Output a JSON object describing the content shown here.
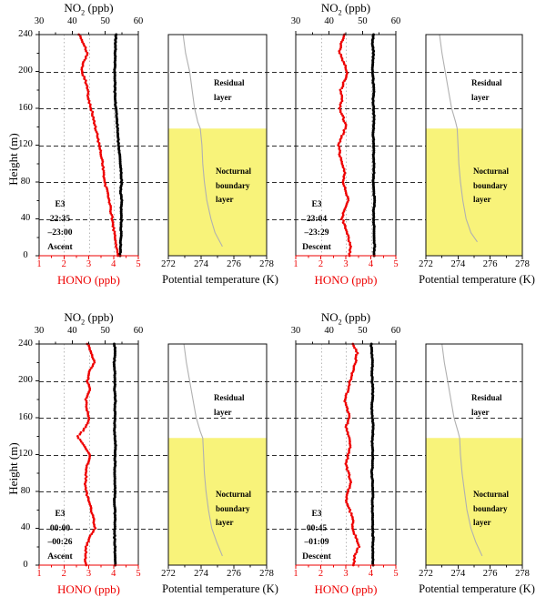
{
  "chart_data": {
    "type": "scatter",
    "description": "Four vertical-profile panels (2x2). Each panel: HONO (red) and NO2 (black) mixing-ratio profiles vs height, plus potential-temperature profile with residual layer and yellow nocturnal boundary layer.",
    "axes": {
      "no2_label_parts": {
        "base": "NO",
        "sub": "2",
        "rest": " (ppb)"
      },
      "hono_label": "HONO (ppb)",
      "theta_label": "Potential temperature (K)",
      "height_label": "Height (m)",
      "no2_ticks": [
        30,
        40,
        50,
        60
      ],
      "no2_minor_ticks": [
        35,
        45,
        55
      ],
      "hono_ticks": [
        1,
        2,
        3,
        4,
        5
      ],
      "hono_minor_ticks": [
        1.5,
        2.5,
        3.5,
        4.5
      ],
      "theta_ticks": [
        272,
        274,
        276,
        278
      ],
      "theta_minor_ticks": [
        273,
        275,
        277
      ],
      "height_ticks": [
        0,
        40,
        80,
        120,
        160,
        200,
        240
      ],
      "height_minor_ticks": [
        20,
        60,
        100,
        140,
        180,
        220
      ],
      "no2_range": [
        30,
        60
      ],
      "hono_range": [
        1,
        5
      ],
      "theta_range": [
        272,
        278
      ],
      "height_range": [
        0,
        240
      ],
      "gridline_heights": [
        40,
        80,
        120,
        160,
        200
      ],
      "hono_dotted_gridlines": [
        2,
        3,
        4
      ],
      "grid": "dashed horizontal at 40/80/120/160/200 m across full row; light dotted vertical at HONO 2/3/4"
    },
    "layer_labels": {
      "residual": [
        "Residual",
        "layer"
      ],
      "nocturnal": [
        "Nocturnal",
        "boundary",
        "layer"
      ]
    },
    "nbl_top_m": 138,
    "heights_m": [
      240,
      230,
      220,
      210,
      200,
      190,
      180,
      170,
      160,
      150,
      140,
      130,
      120,
      110,
      100,
      90,
      80,
      70,
      60,
      50,
      40,
      30,
      20,
      10,
      0
    ],
    "panels": [
      {
        "id": "top-left",
        "annotation": [
          "E3",
          "22:35",
          "–23:00",
          "Ascent"
        ],
        "hono_ppb": [
          2.62,
          2.78,
          2.95,
          2.8,
          2.72,
          2.88,
          2.95,
          3.0,
          3.1,
          3.18,
          3.26,
          3.35,
          3.42,
          3.5,
          3.57,
          3.6,
          3.63,
          3.75,
          3.83,
          3.88,
          3.95,
          4.0,
          4.06,
          4.12,
          4.18
        ],
        "no2_ppb": [
          53.2,
          53.1,
          53.0,
          52.9,
          52.9,
          53.0,
          52.9,
          53.0,
          53.2,
          53.45,
          53.7,
          53.85,
          54.0,
          54.3,
          54.6,
          54.75,
          54.95,
          54.6,
          55.0,
          54.8,
          54.9,
          54.7,
          54.8,
          54.6,
          54.5
        ],
        "theta_K": [
          [
            240,
            272.9
          ],
          [
            220,
            273.05
          ],
          [
            200,
            273.3
          ],
          [
            180,
            273.45
          ],
          [
            160,
            273.6
          ],
          [
            145,
            273.8
          ],
          [
            138,
            273.95
          ],
          [
            120,
            274.05
          ],
          [
            100,
            274.1
          ],
          [
            80,
            274.2
          ],
          [
            60,
            274.35
          ],
          [
            40,
            274.6
          ],
          [
            25,
            274.85
          ],
          [
            10,
            275.3
          ]
        ]
      },
      {
        "id": "top-right",
        "annotation": [
          "E3",
          "23:04",
          "–23:29",
          "Descent"
        ],
        "hono_ppb": [
          2.95,
          2.8,
          2.75,
          2.92,
          3.05,
          2.95,
          2.8,
          2.86,
          2.76,
          2.9,
          3.0,
          2.86,
          2.72,
          2.76,
          2.86,
          2.96,
          2.9,
          3.0,
          3.1,
          2.95,
          2.86,
          3.0,
          3.1,
          3.2,
          3.15
        ],
        "no2_ppb": [
          53.2,
          53.0,
          53.3,
          53.1,
          53.0,
          53.2,
          53.4,
          53.2,
          53.3,
          53.5,
          53.3,
          53.2,
          53.4,
          53.3,
          53.5,
          53.4,
          53.2,
          53.4,
          53.6,
          53.4,
          53.3,
          53.5,
          53.4,
          53.6,
          53.5
        ],
        "theta_K": [
          [
            240,
            272.85
          ],
          [
            220,
            273.0
          ],
          [
            200,
            273.2
          ],
          [
            180,
            273.4
          ],
          [
            160,
            273.6
          ],
          [
            145,
            273.85
          ],
          [
            138,
            273.95
          ],
          [
            120,
            274.0
          ],
          [
            100,
            274.05
          ],
          [
            80,
            274.15
          ],
          [
            60,
            274.3
          ],
          [
            40,
            274.5
          ],
          [
            25,
            274.8
          ],
          [
            15,
            275.2
          ]
        ]
      },
      {
        "id": "bottom-left",
        "annotation": [
          "E3",
          "00:00",
          "–00:26",
          "Ascent"
        ],
        "hono_ppb": [
          2.95,
          3.1,
          3.22,
          3.02,
          2.95,
          3.05,
          2.88,
          2.92,
          3.0,
          2.9,
          2.55,
          2.8,
          3.05,
          2.95,
          2.9,
          2.86,
          2.9,
          3.0,
          3.1,
          3.2,
          3.25,
          3.02,
          2.9,
          2.86,
          2.9
        ],
        "no2_ppb": [
          52.8,
          53.0,
          52.7,
          52.9,
          53.0,
          52.8,
          53.1,
          52.9,
          53.0,
          52.8,
          52.9,
          53.1,
          52.9,
          53.0,
          52.8,
          52.9,
          53.0,
          52.8,
          52.9,
          53.0,
          52.9,
          52.8,
          53.0,
          52.9,
          53.0
        ],
        "theta_K": [
          [
            240,
            272.95
          ],
          [
            220,
            273.1
          ],
          [
            200,
            273.3
          ],
          [
            180,
            273.5
          ],
          [
            160,
            273.7
          ],
          [
            145,
            273.95
          ],
          [
            138,
            274.1
          ],
          [
            120,
            274.15
          ],
          [
            100,
            274.2
          ],
          [
            80,
            274.3
          ],
          [
            60,
            274.45
          ],
          [
            40,
            274.65
          ],
          [
            25,
            274.95
          ],
          [
            10,
            275.3
          ]
        ]
      },
      {
        "id": "bottom-right",
        "annotation": [
          "E3",
          "00:45",
          "–01:09",
          "Descent"
        ],
        "hono_ppb": [
          3.3,
          3.45,
          3.38,
          3.28,
          3.18,
          3.08,
          2.96,
          3.05,
          3.15,
          3.0,
          3.1,
          3.2,
          3.1,
          3.0,
          3.1,
          3.2,
          3.1,
          3.0,
          3.15,
          3.3,
          3.25,
          3.42,
          3.52,
          3.36,
          3.3
        ],
        "no2_ppb": [
          52.6,
          52.8,
          53.0,
          52.8,
          52.9,
          53.1,
          53.0,
          52.8,
          53.0,
          53.2,
          53.0,
          52.9,
          53.1,
          53.0,
          52.8,
          53.0,
          53.2,
          53.0,
          52.9,
          53.1,
          53.0,
          53.2,
          53.0,
          53.1,
          53.2
        ],
        "theta_K": [
          [
            240,
            273.0
          ],
          [
            220,
            273.15
          ],
          [
            200,
            273.35
          ],
          [
            180,
            273.55
          ],
          [
            160,
            273.75
          ],
          [
            145,
            274.0
          ],
          [
            138,
            274.1
          ],
          [
            120,
            274.15
          ],
          [
            100,
            274.25
          ],
          [
            80,
            274.4
          ],
          [
            60,
            274.55
          ],
          [
            40,
            274.8
          ],
          [
            25,
            275.1
          ],
          [
            10,
            275.5
          ]
        ]
      }
    ],
    "colors": {
      "hono_red": "#ee0000",
      "no2_black": "#000000",
      "nbl_yellow": "#f8f37a",
      "theta_gray": "#b0b0b0",
      "dash_gridline": "#2e2e2e",
      "dot_gridline": "#b8b8b8",
      "frame_black": "#111111"
    },
    "legend_position": "none",
    "grid_on": true
  }
}
